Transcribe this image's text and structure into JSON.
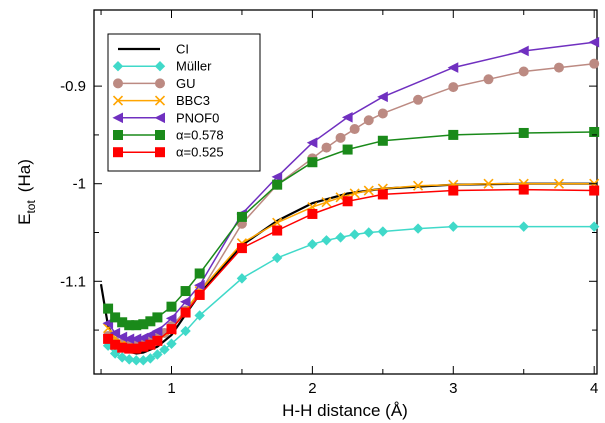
{
  "chart_data": {
    "type": "line",
    "xlabel": "H-H  distance  (Å)",
    "ylabel": "E",
    "ylabel_sub": "tot",
    "ylabel_unit": "(Ha)",
    "xlim": [
      0.45,
      4.02
    ],
    "ylim": [
      -1.195,
      -0.822
    ],
    "xticks": [
      {
        "v": 1,
        "label": "1"
      },
      {
        "v": 2,
        "label": "2"
      },
      {
        "v": 3,
        "label": "3"
      },
      {
        "v": 4,
        "label": "4"
      }
    ],
    "yticks": [
      {
        "v": -0.9,
        "label": "-0.9"
      },
      {
        "v": -1.0,
        "label": "-1"
      },
      {
        "v": -1.1,
        "label": "-1.1"
      }
    ],
    "grid": false,
    "legend_position": "top-left",
    "series": [
      {
        "name": "CI",
        "color": "#000000",
        "marker": "none",
        "x": [
          0.5,
          0.55,
          0.6,
          0.65,
          0.7,
          0.75,
          0.8,
          0.9,
          1.0,
          1.2,
          1.5,
          1.75,
          2.0,
          2.25,
          2.5,
          3.0,
          3.5,
          4.0
        ],
        "y": [
          -1.103,
          -1.146,
          -1.16,
          -1.168,
          -1.172,
          -1.174,
          -1.173,
          -1.167,
          -1.155,
          -1.113,
          -1.063,
          -1.038,
          -1.02,
          -1.01,
          -1.005,
          -1.001,
          -1.0,
          -1.0
        ]
      },
      {
        "name": "Müller",
        "color": "#40d9c9",
        "marker": "diamond",
        "x": [
          0.55,
          0.6,
          0.65,
          0.7,
          0.75,
          0.8,
          0.85,
          0.9,
          0.95,
          1.0,
          1.1,
          1.2,
          1.5,
          1.75,
          2.0,
          2.1,
          2.2,
          2.3,
          2.4,
          2.5,
          2.75,
          3.0,
          3.5,
          4.0
        ],
        "y": [
          -1.166,
          -1.174,
          -1.178,
          -1.18,
          -1.181,
          -1.181,
          -1.179,
          -1.175,
          -1.17,
          -1.164,
          -1.151,
          -1.135,
          -1.097,
          -1.076,
          -1.062,
          -1.058,
          -1.055,
          -1.052,
          -1.05,
          -1.049,
          -1.046,
          -1.044,
          -1.044,
          -1.044
        ]
      },
      {
        "name": "GU",
        "color": "#bc8a82",
        "marker": "circle",
        "x": [
          0.55,
          0.6,
          0.65,
          0.7,
          0.75,
          0.8,
          0.85,
          0.9,
          0.95,
          1.0,
          1.1,
          1.2,
          1.5,
          1.75,
          2.0,
          2.1,
          2.2,
          2.3,
          2.4,
          2.5,
          2.75,
          3.0,
          3.25,
          3.5,
          3.75,
          4.0
        ],
        "y": [
          -1.156,
          -1.162,
          -1.164,
          -1.165,
          -1.165,
          -1.164,
          -1.162,
          -1.158,
          -1.153,
          -1.146,
          -1.13,
          -1.112,
          -1.041,
          -1.001,
          -0.974,
          -0.963,
          -0.953,
          -0.944,
          -0.935,
          -0.928,
          -0.914,
          -0.901,
          -0.893,
          -0.885,
          -0.881,
          -0.877
        ]
      },
      {
        "name": "BBC3",
        "color": "#ffa500",
        "marker": "x",
        "x": [
          0.55,
          0.6,
          0.65,
          0.7,
          0.75,
          0.8,
          0.85,
          0.9,
          1.0,
          1.2,
          1.5,
          1.75,
          2.0,
          2.1,
          2.2,
          2.3,
          2.4,
          2.5,
          2.75,
          3.0,
          3.25,
          3.5,
          3.75,
          4.0
        ],
        "y": [
          -1.148,
          -1.158,
          -1.164,
          -1.167,
          -1.168,
          -1.167,
          -1.165,
          -1.161,
          -1.15,
          -1.11,
          -1.061,
          -1.04,
          -1.024,
          -1.019,
          -1.014,
          -1.01,
          -1.007,
          -1.005,
          -1.002,
          -1.001,
          -1.0,
          -1.0,
          -1.0,
          -1.0
        ]
      },
      {
        "name": "PNOF0",
        "color": "#7030c0",
        "marker": "triangle-left",
        "x": [
          0.55,
          0.6,
          0.65,
          0.7,
          0.75,
          0.8,
          0.85,
          0.9,
          1.0,
          1.1,
          1.2,
          1.5,
          1.75,
          2.0,
          2.25,
          2.5,
          3.0,
          3.5,
          4.0
        ],
        "y": [
          -1.143,
          -1.153,
          -1.157,
          -1.159,
          -1.159,
          -1.158,
          -1.155,
          -1.151,
          -1.138,
          -1.121,
          -1.104,
          -1.031,
          -0.993,
          -0.958,
          -0.932,
          -0.911,
          -0.881,
          -0.864,
          -0.855
        ]
      },
      {
        "name": "α=0.578",
        "color": "#1a8a1a",
        "marker": "square",
        "x": [
          0.55,
          0.6,
          0.65,
          0.7,
          0.75,
          0.8,
          0.85,
          0.9,
          1.0,
          1.1,
          1.2,
          1.5,
          1.75,
          2.0,
          2.25,
          2.5,
          3.0,
          3.5,
          4.0
        ],
        "y": [
          -1.128,
          -1.137,
          -1.142,
          -1.145,
          -1.145,
          -1.144,
          -1.141,
          -1.137,
          -1.126,
          -1.11,
          -1.092,
          -1.034,
          -1.001,
          -0.978,
          -0.965,
          -0.956,
          -0.95,
          -0.948,
          -0.947
        ]
      },
      {
        "name": "α=0.525",
        "color": "#ff0000",
        "marker": "square",
        "x": [
          0.55,
          0.6,
          0.65,
          0.7,
          0.75,
          0.8,
          0.85,
          0.9,
          1.0,
          1.1,
          1.2,
          1.5,
          1.75,
          2.0,
          2.25,
          2.5,
          3.0,
          3.5,
          4.0
        ],
        "y": [
          -1.159,
          -1.165,
          -1.168,
          -1.169,
          -1.169,
          -1.167,
          -1.165,
          -1.161,
          -1.149,
          -1.132,
          -1.114,
          -1.066,
          -1.048,
          -1.031,
          -1.018,
          -1.011,
          -1.007,
          -1.006,
          -1.007
        ]
      }
    ]
  }
}
